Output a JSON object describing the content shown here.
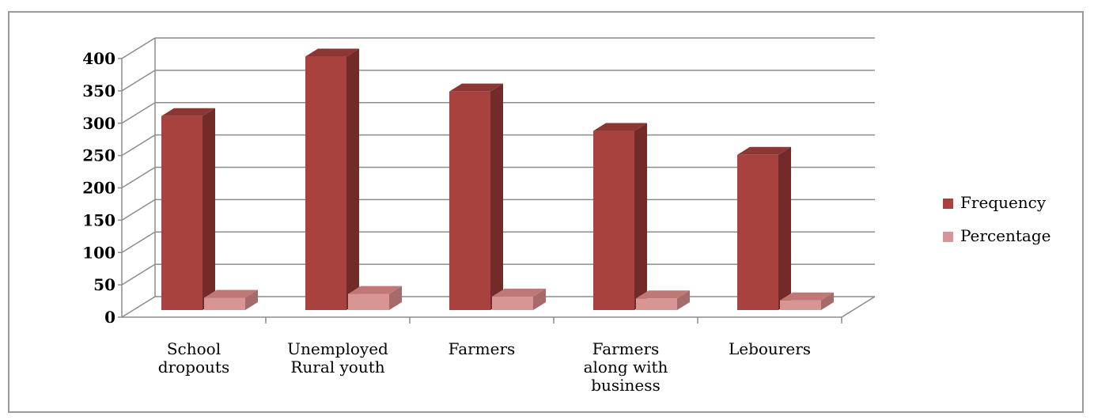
{
  "chart_data": {
    "type": "bar",
    "style": "3d-clustered-column",
    "categories": [
      [
        "School",
        "dropouts"
      ],
      [
        "Unemployed",
        "Rural youth"
      ],
      [
        "Farmers"
      ],
      [
        "Farmers",
        "along with",
        "business"
      ],
      [
        "Lebourers"
      ]
    ],
    "series": [
      {
        "name": "Frequency",
        "values": [
          300,
          392,
          338,
          277,
          240
        ],
        "color": "#A8423F",
        "side_color": "#722B29",
        "top_color": "#8C3734"
      },
      {
        "name": "Percentage",
        "values": [
          19,
          25,
          21,
          18,
          15
        ],
        "color": "#D99594",
        "side_color": "#A56A69",
        "top_color": "#C07877"
      }
    ],
    "ylim": [
      0,
      400
    ],
    "yticks": [
      0,
      50,
      100,
      150,
      200,
      250,
      300,
      350,
      400
    ],
    "grid": true,
    "legend_position": "right"
  }
}
